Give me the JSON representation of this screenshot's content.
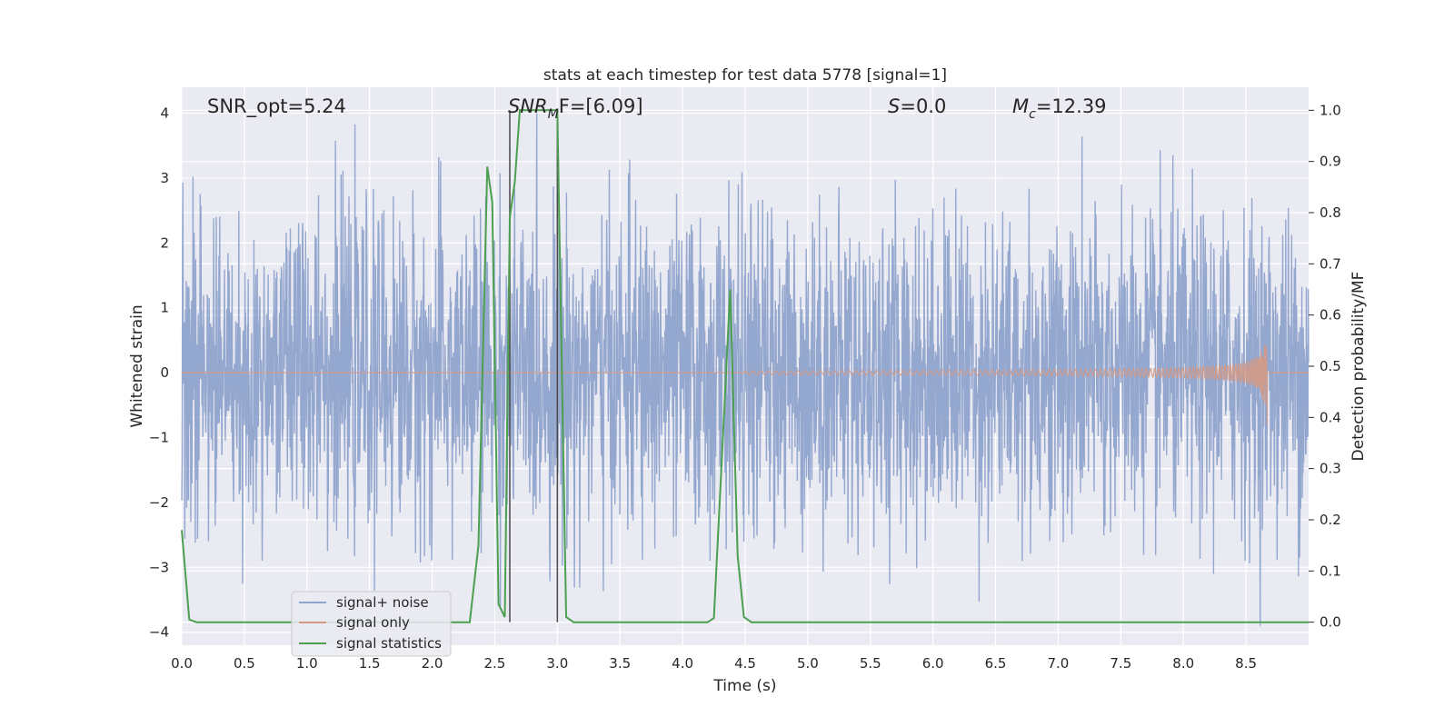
{
  "chart_data": {
    "type": "line",
    "title": "stats at each timestep for test data 5778 [signal=1]",
    "xlabel": "Time (s)",
    "ylabel": "Whitened strain",
    "y2label": "Detection probability/MF",
    "xlim": [
      0,
      9
    ],
    "ylim": [
      -4.2,
      4.4
    ],
    "y2lim": [
      -0.045,
      1.045
    ],
    "xticks": [
      "0.0",
      "0.5",
      "1.0",
      "1.5",
      "2.0",
      "2.5",
      "3.0",
      "3.5",
      "4.0",
      "4.5",
      "5.0",
      "5.5",
      "6.0",
      "6.5",
      "7.0",
      "7.5",
      "8.0",
      "8.5"
    ],
    "yticks": [
      "4",
      "3",
      "2",
      "1",
      "0",
      "−1",
      "−2",
      "−3",
      "−4"
    ],
    "y2ticks": [
      "1.0",
      "0.9",
      "0.8",
      "0.7",
      "0.6",
      "0.5",
      "0.4",
      "0.3",
      "0.2",
      "0.1",
      "0.0"
    ],
    "grid": true,
    "legend_placement": "lower-left",
    "annotations": {
      "snr_opt": "SNR_opt=5.24",
      "snr_mf_sym": "SNR",
      "snr_mf_sub": "M",
      "snr_mf_rest": "F=[6.09]",
      "s_sym": "S",
      "s_rest": "=0.0",
      "mc_sym": "M",
      "mc_sub": "c",
      "mc_rest": "=12.39"
    },
    "vlines_s": [
      2.62,
      3.0
    ],
    "series": [
      {
        "name": "signal+ noise",
        "color": "#8fa3cc",
        "axis": "left",
        "description_level": "noise band approx ±1.6 typical, peaks to ±3.5",
        "envelope": {
          "sigma": 1.2,
          "n_samples": 3000
        }
      },
      {
        "name": "signal only",
        "color": "#d49a85",
        "axis": "left",
        "chirp": {
          "start": 4.5,
          "end": 8.67,
          "peak_amplitude": 0.95,
          "end_amplitude": 0.8
        }
      },
      {
        "name": "signal statistics",
        "color": "#4c9f50",
        "axis": "right",
        "x": [
          0.0,
          0.06,
          0.12,
          0.5,
          1.0,
          1.5,
          2.0,
          2.3,
          2.37,
          2.44,
          2.48,
          2.53,
          2.58,
          2.62,
          2.66,
          2.7,
          2.8,
          2.9,
          3.0,
          3.07,
          3.13,
          3.5,
          4.0,
          4.2,
          4.25,
          4.32,
          4.38,
          4.44,
          4.49,
          4.55,
          5.0,
          6.0,
          7.0,
          8.0,
          8.67,
          9.0
        ],
        "y": [
          0.18,
          0.005,
          0.0,
          0.0,
          0.0,
          0.0,
          0.0,
          0.0,
          0.15,
          0.89,
          0.82,
          0.035,
          0.01,
          0.79,
          0.86,
          1.0,
          1.0,
          1.0,
          1.0,
          0.01,
          0.0,
          0.0,
          0.0,
          0.0,
          0.008,
          0.35,
          0.65,
          0.13,
          0.01,
          0.0,
          0.0,
          0.0,
          0.0,
          0.0,
          0.0,
          0.0
        ]
      }
    ]
  },
  "colors": {
    "plot_bg": "#eaeaf2",
    "grid": "#ffffff",
    "vline": "#4a4a4a"
  }
}
